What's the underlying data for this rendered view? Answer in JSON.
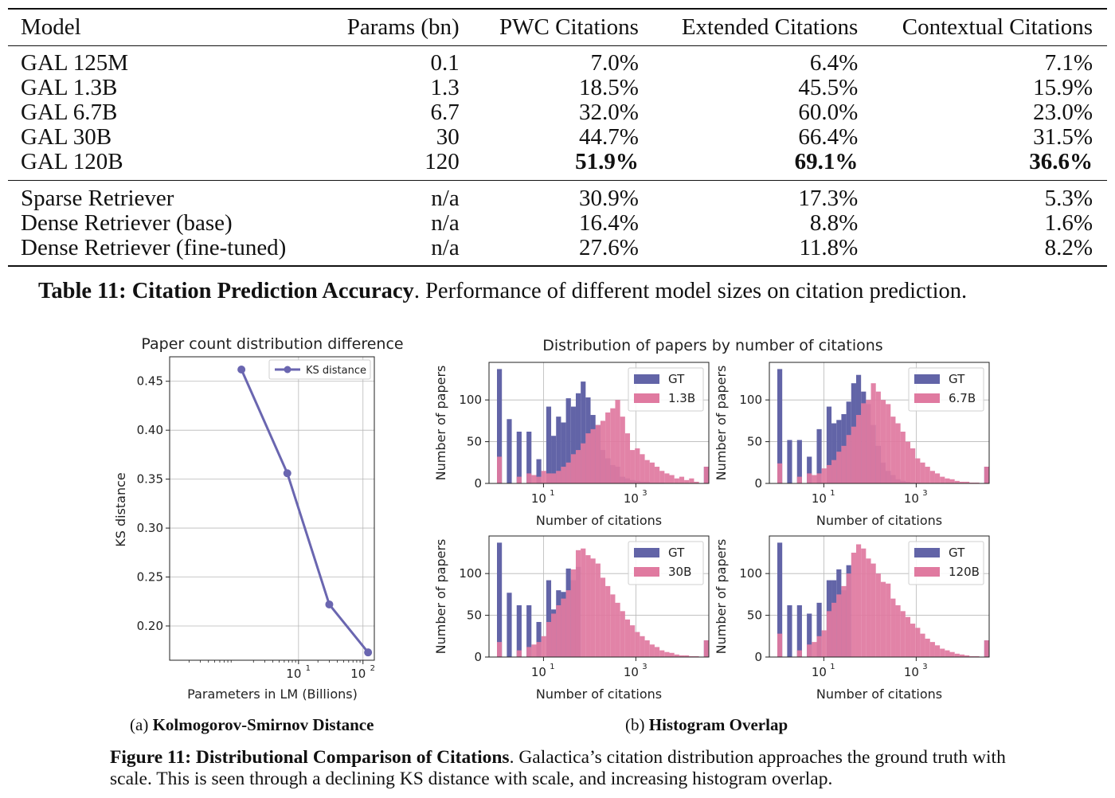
{
  "table": {
    "headers": [
      "Model",
      "Params (bn)",
      "PWC Citations",
      "Extended Citations",
      "Contextual Citations"
    ],
    "group1": [
      {
        "model": "GAL 125M",
        "params": "0.1",
        "pwc": "7.0%",
        "ext": "6.4%",
        "ctx": "7.1%"
      },
      {
        "model": "GAL 1.3B",
        "params": "1.3",
        "pwc": "18.5%",
        "ext": "45.5%",
        "ctx": "15.9%"
      },
      {
        "model": "GAL 6.7B",
        "params": "6.7",
        "pwc": "32.0%",
        "ext": "60.0%",
        "ctx": "23.0%"
      },
      {
        "model": "GAL 30B",
        "params": "30",
        "pwc": "44.7%",
        "ext": "66.4%",
        "ctx": "31.5%"
      },
      {
        "model": "GAL 120B",
        "params": "120",
        "pwc": "51.9%",
        "ext": "69.1%",
        "ctx": "36.6%"
      }
    ],
    "group2": [
      {
        "model": "Sparse Retriever",
        "params": "n/a",
        "pwc": "30.9%",
        "ext": "17.3%",
        "ctx": "5.3%"
      },
      {
        "model": "Dense Retriever (base)",
        "params": "n/a",
        "pwc": "16.4%",
        "ext": "8.8%",
        "ctx": "1.6%"
      },
      {
        "model": "Dense Retriever (fine-tuned)",
        "params": "n/a",
        "pwc": "27.6%",
        "ext": "11.8%",
        "ctx": "8.2%"
      }
    ]
  },
  "table_caption": {
    "label": "Table 11: Citation Prediction Accuracy",
    "text": ". Performance of different model sizes on citation prediction."
  },
  "colors": {
    "gt": "#6264a7",
    "model": "#e07aa0",
    "line": "#6a66b0"
  },
  "chart_data": [
    {
      "type": "line",
      "title": "Paper count distribution difference",
      "xlabel": "Parameters in LM (Billions)",
      "ylabel": "KS distance",
      "xscale": "log",
      "xlim": [
        0.1,
        150
      ],
      "ylim": [
        0.165,
        0.475
      ],
      "yticks": [
        "0.20",
        "0.25",
        "0.30",
        "0.35",
        "0.40",
        "0.45"
      ],
      "xticks": [
        "10",
        "10"
      ],
      "xtick_exp": [
        "1",
        "2"
      ],
      "legend": "KS distance",
      "legend_position": "top-right",
      "grid": true,
      "series": [
        {
          "name": "KS distance",
          "x": [
            1.3,
            6.7,
            30,
            120
          ],
          "y": [
            0.462,
            0.356,
            0.222,
            0.173
          ]
        }
      ]
    },
    {
      "type": "bar",
      "title": "Distribution of papers by number of citations",
      "xlabel": "Number of citations",
      "ylabel": "Number of papers",
      "xscale": "log",
      "yticks": [
        "0",
        "50",
        "100"
      ],
      "xticks": [
        "10",
        "10"
      ],
      "xtick_exp": [
        "1",
        "3"
      ],
      "grid": true,
      "legend_position": "top-right",
      "gt_label": "GT",
      "panels": [
        {
          "label": "1.3B",
          "gt": [
            137,
            0,
            77,
            0,
            62,
            0,
            62,
            0,
            29,
            0,
            92,
            57,
            80,
            73,
            102,
            92,
            108,
            122,
            103,
            82,
            70,
            40,
            30,
            22,
            20,
            8,
            6,
            4,
            3,
            2,
            2,
            1,
            1,
            1,
            0,
            0,
            0,
            0,
            0,
            0,
            0,
            0,
            20
          ],
          "model": [
            32,
            0,
            0,
            0,
            8,
            0,
            12,
            10,
            8,
            15,
            12,
            12,
            15,
            20,
            25,
            35,
            40,
            48,
            60,
            65,
            70,
            75,
            85,
            90,
            100,
            80,
            60,
            40,
            42,
            35,
            28,
            25,
            20,
            15,
            12,
            10,
            6,
            8,
            4,
            6,
            2,
            0,
            20
          ]
        },
        {
          "label": "6.7B",
          "gt": [
            137,
            0,
            52,
            0,
            52,
            0,
            32,
            0,
            65,
            0,
            92,
            72,
            76,
            83,
            98,
            120,
            130,
            110,
            95,
            70,
            45,
            25,
            15,
            10,
            5,
            3,
            2,
            1,
            1,
            0,
            0,
            0,
            0,
            0,
            0,
            0,
            0,
            0,
            0,
            0,
            0,
            0,
            20
          ],
          "model": [
            24,
            0,
            0,
            0,
            8,
            0,
            12,
            10,
            12,
            18,
            22,
            28,
            38,
            45,
            58,
            68,
            82,
            96,
            100,
            120,
            110,
            100,
            95,
            80,
            72,
            62,
            50,
            42,
            30,
            25,
            20,
            15,
            12,
            8,
            6,
            5,
            3,
            2,
            2,
            1,
            1,
            0,
            20
          ]
        },
        {
          "label": "30B",
          "gt": [
            137,
            0,
            77,
            0,
            62,
            0,
            62,
            0,
            42,
            0,
            92,
            57,
            80,
            78,
            106,
            92,
            108,
            0,
            0,
            0,
            0,
            0,
            0,
            0,
            0,
            0,
            0,
            0,
            0,
            0,
            0,
            0,
            0,
            0,
            0,
            0,
            0,
            0,
            0,
            0,
            0,
            0,
            20
          ],
          "model": [
            18,
            0,
            0,
            0,
            8,
            0,
            12,
            15,
            18,
            25,
            42,
            52,
            62,
            70,
            80,
            105,
            128,
            130,
            122,
            118,
            112,
            95,
            85,
            75,
            65,
            55,
            45,
            38,
            30,
            25,
            20,
            15,
            12,
            8,
            6,
            5,
            3,
            2,
            2,
            1,
            1,
            0,
            20
          ]
        },
        {
          "label": "120B",
          "gt": [
            137,
            0,
            62,
            0,
            62,
            0,
            52,
            0,
            65,
            0,
            92,
            92,
            105,
            80,
            110,
            0,
            0,
            0,
            0,
            0,
            0,
            0,
            0,
            0,
            0,
            0,
            0,
            0,
            0,
            0,
            0,
            0,
            0,
            0,
            0,
            0,
            0,
            0,
            0,
            0,
            0,
            0,
            20
          ],
          "model": [
            28,
            0,
            0,
            0,
            8,
            0,
            15,
            18,
            25,
            32,
            55,
            65,
            75,
            85,
            100,
            125,
            135,
            130,
            118,
            112,
            100,
            90,
            88,
            70,
            62,
            55,
            48,
            40,
            35,
            28,
            22,
            18,
            14,
            10,
            8,
            6,
            4,
            3,
            2,
            1,
            1,
            0,
            20
          ]
        }
      ]
    }
  ],
  "subcaptions": {
    "a_label": "(a)",
    "a_title": "Kolmogorov-Smirnov Distance",
    "b_label": "(b)",
    "b_title": "Histogram Overlap"
  },
  "figure_caption": {
    "label": "Figure 11: Distributional Comparison of Citations",
    "text": ". Galactica’s citation distribution approaches the ground truth with scale. This is seen through a declining KS distance with scale, and increasing histogram overlap."
  }
}
